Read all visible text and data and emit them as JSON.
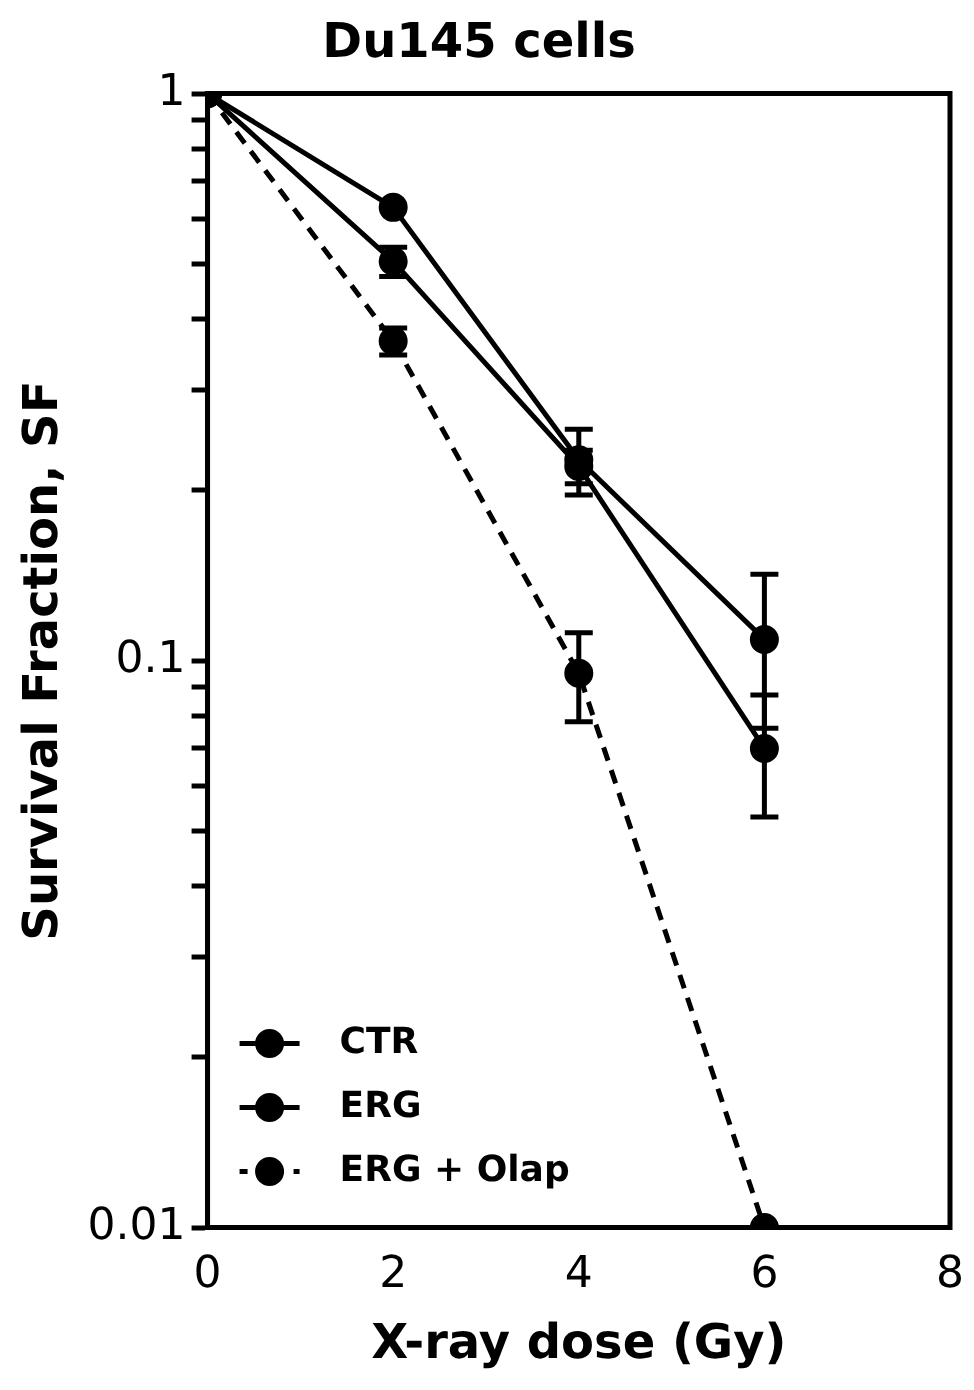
{
  "chart_data": {
    "type": "line",
    "title": "Du145 cells",
    "xlabel": "X-ray dose (Gy)",
    "ylabel": "Survival Fraction, SF",
    "xlim": [
      0,
      8
    ],
    "xticks": [
      0,
      2,
      4,
      6,
      8
    ],
    "ylim": [
      0.01,
      1
    ],
    "log": "y",
    "yticks": [
      {
        "value": 0.01,
        "label": "0.01"
      },
      {
        "value": 0.02,
        "label": null
      },
      {
        "value": 0.03,
        "label": null
      },
      {
        "value": 0.04,
        "label": null
      },
      {
        "value": 0.05,
        "label": null
      },
      {
        "value": 0.06,
        "label": null
      },
      {
        "value": 0.07,
        "label": null
      },
      {
        "value": 0.08,
        "label": null
      },
      {
        "value": 0.09,
        "label": null
      },
      {
        "value": 0.1,
        "label": "0.1"
      },
      {
        "value": 0.2,
        "label": null
      },
      {
        "value": 0.3,
        "label": null
      },
      {
        "value": 0.4,
        "label": null
      },
      {
        "value": 0.5,
        "label": null
      },
      {
        "value": 0.6,
        "label": null
      },
      {
        "value": 0.7,
        "label": null
      },
      {
        "value": 0.8,
        "label": null
      },
      {
        "value": 0.9,
        "label": null
      },
      {
        "value": 1,
        "label": "1"
      }
    ],
    "x": [
      0,
      2,
      4,
      6
    ],
    "grid": false,
    "legend": "bottom left",
    "marker": "circle",
    "series": [
      {
        "name": "CTR",
        "color": "#000000",
        "line_style": "solid",
        "values": [
          1,
          0.63,
          0.226,
          0.109
        ],
        "errors": [
          null,
          null,
          0.03,
          0.033
        ]
      },
      {
        "name": "ERG",
        "color": "#000000",
        "line_style": "solid",
        "values": [
          1,
          0.506,
          0.22,
          0.07
        ],
        "errors": [
          null,
          0.03,
          0.015,
          0.017
        ]
      },
      {
        "name": "ERG + Olap",
        "color": "#000000",
        "line_style": "dashed",
        "values": [
          1,
          0.366,
          0.095,
          0.01
        ],
        "errors": [
          null,
          0.02,
          0.017,
          null
        ]
      }
    ]
  }
}
